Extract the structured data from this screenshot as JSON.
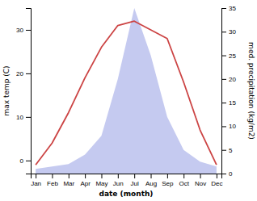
{
  "chart_data": {
    "type": "line",
    "xlabel": "date (month)",
    "ylabel": "max temp (C)",
    "y2label": "med. precipitation (kg/m2)",
    "categories": [
      "Jan",
      "Feb",
      "Mar",
      "Apr",
      "May",
      "Jun",
      "Jul",
      "Aug",
      "Sep",
      "Oct",
      "Nov",
      "Dec"
    ],
    "series": [
      {
        "type": "area",
        "axis": "y2",
        "color": "#c5caf0",
        "values": [
          1.0,
          1.5,
          2.0,
          4.0,
          8.0,
          20.0,
          35.0,
          25.0,
          12.0,
          5.0,
          2.5,
          1.5
        ]
      },
      {
        "type": "line",
        "color": "#cc4444",
        "values": [
          -1,
          4,
          11,
          19,
          26,
          31,
          32,
          30,
          28,
          18,
          7,
          -1
        ]
      }
    ],
    "ylim": [
      -3,
      35
    ],
    "yticks": [
      0,
      10,
      20,
      30
    ],
    "y2lim": [
      0,
      35
    ],
    "y2ticks": [
      0,
      5,
      10,
      15,
      20,
      25,
      30,
      35
    ]
  }
}
